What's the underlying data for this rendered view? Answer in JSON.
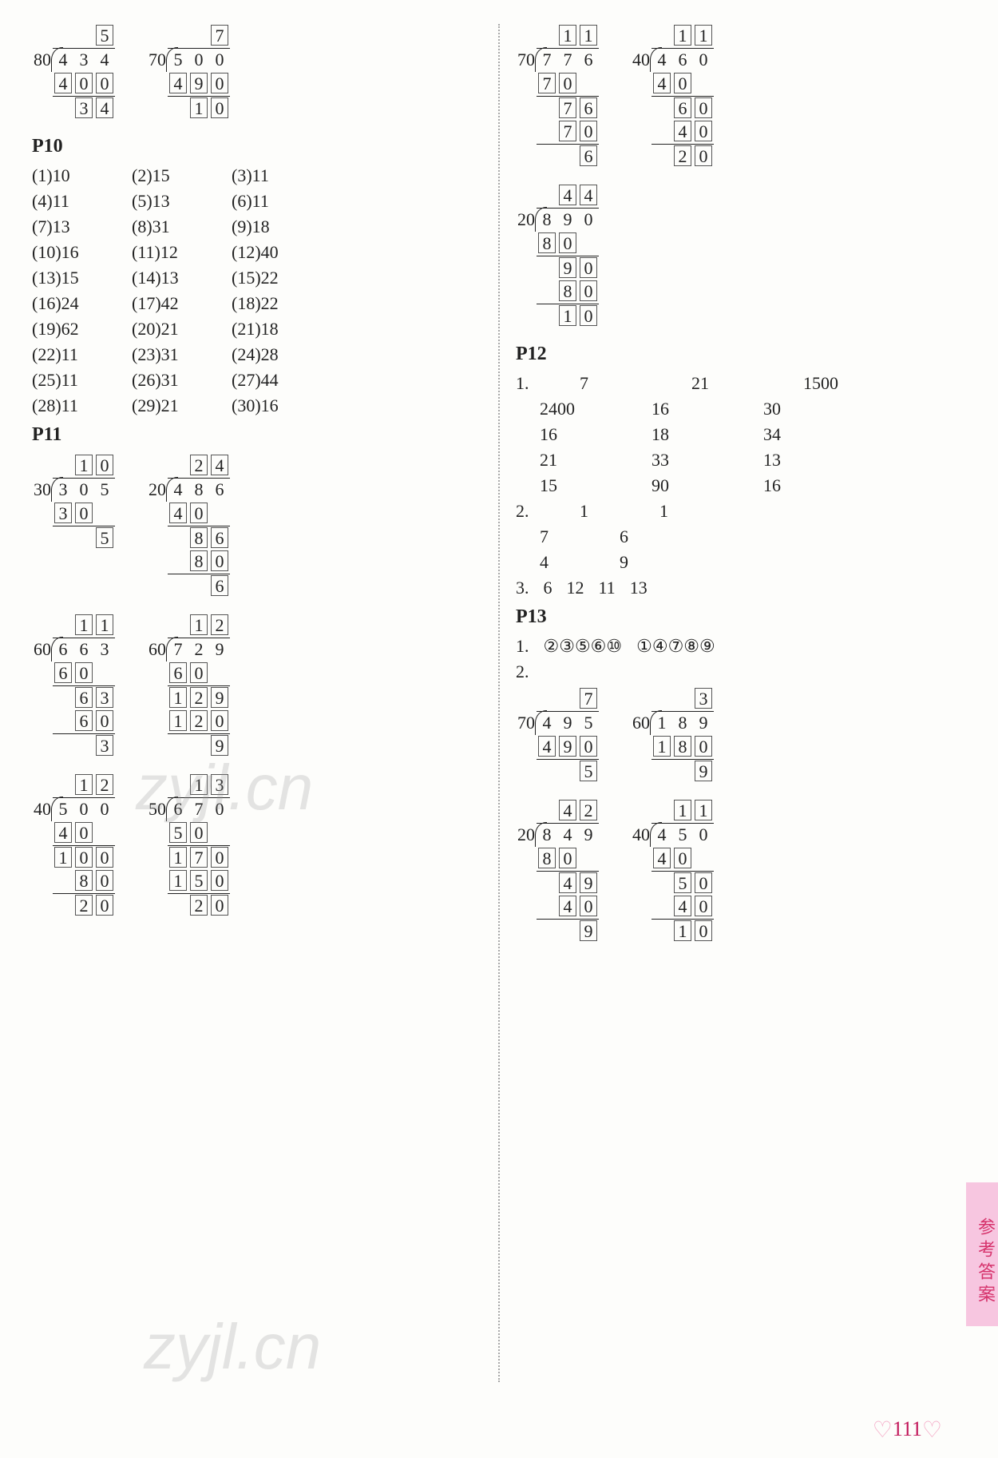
{
  "page_number": "111",
  "side_tab": "参考答案",
  "watermark": "zyjl.cn",
  "left": {
    "top_divisions": [
      {
        "divisor": "80",
        "dividend": [
          "4",
          "3",
          "4"
        ],
        "quotient": [
          "",
          "",
          "5"
        ],
        "steps": [
          {
            "vals": [
              "4",
              "0",
              "0"
            ],
            "boxed": [
              1,
              1,
              1
            ],
            "uline": 1
          },
          {
            "vals": [
              "",
              "3",
              "4"
            ],
            "boxed": [
              0,
              1,
              1
            ]
          }
        ]
      },
      {
        "divisor": "70",
        "dividend": [
          "5",
          "0",
          "0"
        ],
        "quotient": [
          "",
          "",
          "7"
        ],
        "steps": [
          {
            "vals": [
              "4",
              "9",
              "0"
            ],
            "boxed": [
              1,
              1,
              1
            ],
            "uline": 1
          },
          {
            "vals": [
              "",
              "1",
              "0"
            ],
            "boxed": [
              0,
              1,
              1
            ]
          }
        ]
      }
    ],
    "p10_heading": "P10",
    "p10_answers": [
      [
        "(1)10",
        "(2)15",
        "(3)11"
      ],
      [
        "(4)11",
        "(5)13",
        "(6)11"
      ],
      [
        "(7)13",
        "(8)31",
        "(9)18"
      ],
      [
        "(10)16",
        "(11)12",
        "(12)40"
      ],
      [
        "(13)15",
        "(14)13",
        "(15)22"
      ],
      [
        "(16)24",
        "(17)42",
        "(18)22"
      ],
      [
        "(19)62",
        "(20)21",
        "(21)18"
      ],
      [
        "(22)11",
        "(23)31",
        "(24)28"
      ],
      [
        "(25)11",
        "(26)31",
        "(27)44"
      ],
      [
        "(28)11",
        "(29)21",
        "(30)16"
      ]
    ],
    "p11_heading": "P11",
    "p11_groups": [
      [
        {
          "divisor": "30",
          "dividend": [
            "3",
            "0",
            "5"
          ],
          "quotient": [
            "",
            "1",
            "0"
          ],
          "steps": [
            {
              "vals": [
                "3",
                "0",
                ""
              ],
              "boxed": [
                1,
                1,
                0
              ],
              "uline": 1
            },
            {
              "vals": [
                "",
                "",
                "5"
              ],
              "boxed": [
                0,
                0,
                1
              ]
            }
          ]
        },
        {
          "divisor": "20",
          "dividend": [
            "4",
            "8",
            "6"
          ],
          "quotient": [
            "",
            "2",
            "4"
          ],
          "steps": [
            {
              "vals": [
                "4",
                "0",
                ""
              ],
              "boxed": [
                1,
                1,
                0
              ],
              "uline": 1
            },
            {
              "vals": [
                "",
                "8",
                "6"
              ],
              "boxed": [
                0,
                1,
                1
              ]
            },
            {
              "vals": [
                "",
                "8",
                "0"
              ],
              "boxed": [
                0,
                1,
                1
              ],
              "uline": 1
            },
            {
              "vals": [
                "",
                "",
                "6"
              ],
              "boxed": [
                0,
                0,
                1
              ]
            }
          ]
        }
      ],
      [
        {
          "divisor": "60",
          "dividend": [
            "6",
            "6",
            "3"
          ],
          "quotient": [
            "",
            "1",
            "1"
          ],
          "steps": [
            {
              "vals": [
                "6",
                "0",
                ""
              ],
              "boxed": [
                1,
                1,
                0
              ],
              "uline": 1
            },
            {
              "vals": [
                "",
                "6",
                "3"
              ],
              "boxed": [
                0,
                1,
                1
              ]
            },
            {
              "vals": [
                "",
                "6",
                "0"
              ],
              "boxed": [
                0,
                1,
                1
              ],
              "uline": 1
            },
            {
              "vals": [
                "",
                "",
                "3"
              ],
              "boxed": [
                0,
                0,
                1
              ]
            }
          ]
        },
        {
          "divisor": "60",
          "dividend": [
            "7",
            "2",
            "9"
          ],
          "quotient": [
            "",
            "1",
            "2"
          ],
          "steps": [
            {
              "vals": [
                "6",
                "0",
                ""
              ],
              "boxed": [
                1,
                1,
                0
              ],
              "uline": 1
            },
            {
              "vals": [
                "1",
                "2",
                "9"
              ],
              "boxed": [
                1,
                1,
                1
              ]
            },
            {
              "vals": [
                "1",
                "2",
                "0"
              ],
              "boxed": [
                1,
                1,
                1
              ],
              "uline": 1
            },
            {
              "vals": [
                "",
                "",
                "9"
              ],
              "boxed": [
                0,
                0,
                1
              ]
            }
          ]
        }
      ],
      [
        {
          "divisor": "40",
          "dividend": [
            "5",
            "0",
            "0"
          ],
          "quotient": [
            "",
            "1",
            "2"
          ],
          "steps": [
            {
              "vals": [
                "4",
                "0",
                ""
              ],
              "boxed": [
                1,
                1,
                0
              ],
              "uline": 1
            },
            {
              "vals": [
                "1",
                "0",
                "0"
              ],
              "boxed": [
                1,
                1,
                1
              ]
            },
            {
              "vals": [
                "",
                "8",
                "0"
              ],
              "boxed": [
                0,
                1,
                1
              ],
              "uline": 1
            },
            {
              "vals": [
                "",
                "2",
                "0"
              ],
              "boxed": [
                0,
                1,
                1
              ]
            }
          ]
        },
        {
          "divisor": "50",
          "dividend": [
            "6",
            "7",
            "0"
          ],
          "quotient": [
            "",
            "1",
            "3"
          ],
          "steps": [
            {
              "vals": [
                "5",
                "0",
                ""
              ],
              "boxed": [
                1,
                1,
                0
              ],
              "uline": 1
            },
            {
              "vals": [
                "1",
                "7",
                "0"
              ],
              "boxed": [
                1,
                1,
                1
              ]
            },
            {
              "vals": [
                "1",
                "5",
                "0"
              ],
              "boxed": [
                1,
                1,
                1
              ],
              "uline": 1
            },
            {
              "vals": [
                "",
                "2",
                "0"
              ],
              "boxed": [
                0,
                1,
                1
              ]
            }
          ]
        }
      ]
    ]
  },
  "right": {
    "top_divisions": [
      {
        "divisor": "70",
        "dividend": [
          "7",
          "7",
          "6"
        ],
        "quotient": [
          "",
          "1",
          "1"
        ],
        "steps": [
          {
            "vals": [
              "7",
              "0",
              ""
            ],
            "boxed": [
              1,
              1,
              0
            ],
            "uline": 1
          },
          {
            "vals": [
              "",
              "7",
              "6"
            ],
            "boxed": [
              0,
              1,
              1
            ]
          },
          {
            "vals": [
              "",
              "7",
              "0"
            ],
            "boxed": [
              0,
              1,
              1
            ],
            "uline": 1
          },
          {
            "vals": [
              "",
              "",
              "6"
            ],
            "boxed": [
              0,
              0,
              1
            ]
          }
        ]
      },
      {
        "divisor": "40",
        "dividend": [
          "4",
          "6",
          "0"
        ],
        "quotient": [
          "",
          "1",
          "1"
        ],
        "steps": [
          {
            "vals": [
              "4",
              "0",
              ""
            ],
            "boxed": [
              1,
              1,
              0
            ],
            "uline": 1
          },
          {
            "vals": [
              "",
              "6",
              "0"
            ],
            "boxed": [
              0,
              1,
              1
            ]
          },
          {
            "vals": [
              "",
              "4",
              "0"
            ],
            "boxed": [
              0,
              1,
              1
            ],
            "uline": 1
          },
          {
            "vals": [
              "",
              "2",
              "0"
            ],
            "boxed": [
              0,
              1,
              1
            ]
          }
        ]
      }
    ],
    "mid_division": {
      "divisor": "20",
      "dividend": [
        "8",
        "9",
        "0"
      ],
      "quotient": [
        "",
        "4",
        "4"
      ],
      "steps": [
        {
          "vals": [
            "8",
            "0",
            ""
          ],
          "boxed": [
            1,
            1,
            0
          ],
          "uline": 1
        },
        {
          "vals": [
            "",
            "9",
            "0"
          ],
          "boxed": [
            0,
            1,
            1
          ]
        },
        {
          "vals": [
            "",
            "8",
            "0"
          ],
          "boxed": [
            0,
            1,
            1
          ],
          "uline": 1
        },
        {
          "vals": [
            "",
            "1",
            "0"
          ],
          "boxed": [
            0,
            1,
            1
          ]
        }
      ]
    },
    "p12_heading": "P12",
    "p12_q1_label": "1.",
    "p12_q1": [
      [
        "7",
        "21",
        "1500"
      ],
      [
        "2400",
        "16",
        "30"
      ],
      [
        "16",
        "18",
        "34"
      ],
      [
        "21",
        "33",
        "13"
      ],
      [
        "15",
        "90",
        "16"
      ]
    ],
    "p12_q2_label": "2.",
    "p12_q2": [
      [
        "1",
        "1"
      ],
      [
        "7",
        "6"
      ],
      [
        "4",
        "9"
      ]
    ],
    "p12_q3_label": "3.",
    "p12_q3": [
      "6",
      "12",
      "11",
      "13"
    ],
    "p13_heading": "P13",
    "p13_q1_label": "1.",
    "p13_q1": [
      "②③⑤⑥⑩",
      "①④⑦⑧⑨"
    ],
    "p13_q2_label": "2.",
    "p13_groups": [
      [
        {
          "divisor": "70",
          "dividend": [
            "4",
            "9",
            "5"
          ],
          "quotient": [
            "",
            "",
            "7"
          ],
          "steps": [
            {
              "vals": [
                "4",
                "9",
                "0"
              ],
              "boxed": [
                1,
                1,
                1
              ],
              "uline": 1
            },
            {
              "vals": [
                "",
                "",
                "5"
              ],
              "boxed": [
                0,
                0,
                1
              ]
            }
          ]
        },
        {
          "divisor": "60",
          "dividend": [
            "1",
            "8",
            "9"
          ],
          "quotient": [
            "",
            "",
            "3"
          ],
          "steps": [
            {
              "vals": [
                "1",
                "8",
                "0"
              ],
              "boxed": [
                1,
                1,
                1
              ],
              "uline": 1
            },
            {
              "vals": [
                "",
                "",
                "9"
              ],
              "boxed": [
                0,
                0,
                1
              ]
            }
          ]
        }
      ],
      [
        {
          "divisor": "20",
          "dividend": [
            "8",
            "4",
            "9"
          ],
          "quotient": [
            "",
            "4",
            "2"
          ],
          "steps": [
            {
              "vals": [
                "8",
                "0",
                ""
              ],
              "boxed": [
                1,
                1,
                0
              ],
              "uline": 1
            },
            {
              "vals": [
                "",
                "4",
                "9"
              ],
              "boxed": [
                0,
                1,
                1
              ]
            },
            {
              "vals": [
                "",
                "4",
                "0"
              ],
              "boxed": [
                0,
                1,
                1
              ],
              "uline": 1
            },
            {
              "vals": [
                "",
                "",
                "9"
              ],
              "boxed": [
                0,
                0,
                1
              ]
            }
          ]
        },
        {
          "divisor": "40",
          "dividend": [
            "4",
            "5",
            "0"
          ],
          "quotient": [
            "",
            "1",
            "1"
          ],
          "steps": [
            {
              "vals": [
                "4",
                "0",
                ""
              ],
              "boxed": [
                1,
                1,
                0
              ],
              "uline": 1
            },
            {
              "vals": [
                "",
                "5",
                "0"
              ],
              "boxed": [
                0,
                1,
                1
              ]
            },
            {
              "vals": [
                "",
                "4",
                "0"
              ],
              "boxed": [
                0,
                1,
                1
              ],
              "uline": 1
            },
            {
              "vals": [
                "",
                "1",
                "0"
              ],
              "boxed": [
                0,
                1,
                1
              ]
            }
          ]
        }
      ]
    ]
  },
  "style": {
    "box_border": "#555555",
    "text_color": "#222222",
    "background": "#fdfdfb",
    "side_tab_bg": "#f7c6e0",
    "side_tab_color": "#d6336c",
    "divider_color": "#aaaaaa"
  }
}
